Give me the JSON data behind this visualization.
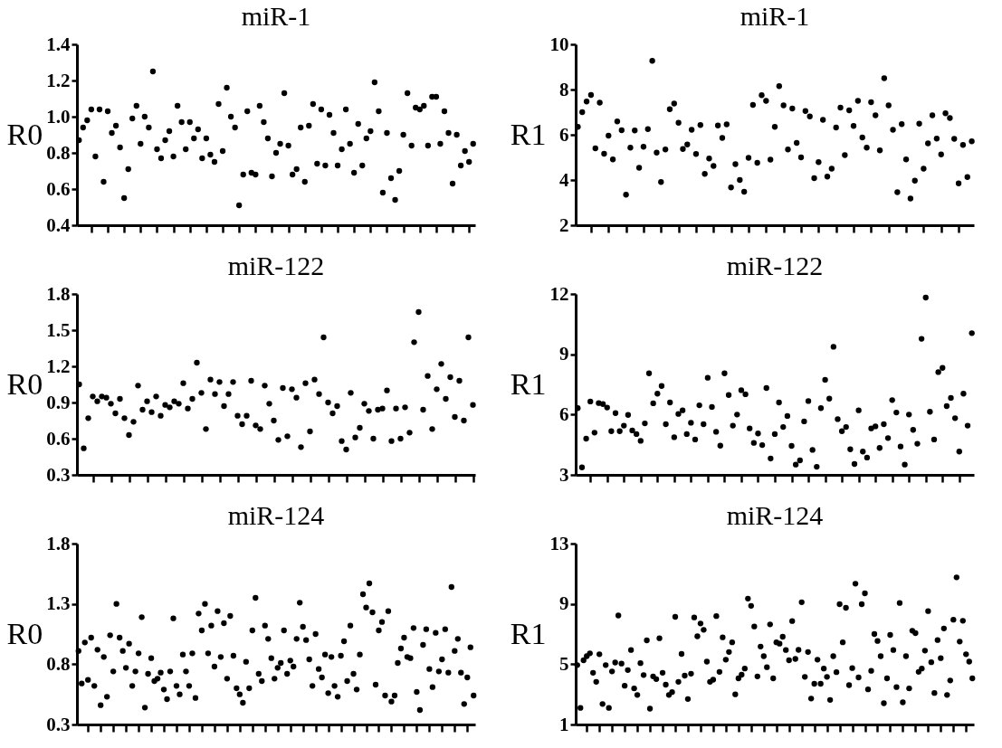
{
  "chart_data": [
    {
      "type": "scatter",
      "title": "miR-1",
      "ylabel": "R0",
      "color": "#000000",
      "marker": "circle",
      "tick_labels": "y",
      "ylim": [
        0.4,
        1.4
      ],
      "yticks": [
        0.4,
        0.6,
        0.8,
        {
          "value": 1,
          "label": "1.0"
        },
        1.2,
        1.4
      ],
      "categories": [
        null,
        null,
        null,
        null,
        null,
        null,
        null,
        null,
        null,
        null,
        null,
        null,
        null,
        null,
        null,
        null,
        null,
        null,
        null,
        null,
        null,
        null,
        null,
        null,
        null,
        null,
        null,
        null,
        null,
        null,
        null,
        null,
        null,
        null,
        null,
        null,
        null,
        null,
        null,
        null,
        null,
        null,
        null,
        null,
        null,
        null,
        null,
        null,
        null,
        null,
        null,
        null,
        null,
        null,
        null,
        null,
        null,
        null,
        null,
        null,
        null,
        null,
        null,
        null,
        null,
        null,
        null,
        null,
        null,
        null,
        null,
        null,
        null,
        null,
        null,
        null,
        null,
        null,
        null,
        null,
        null,
        null,
        null,
        null,
        null,
        null,
        null,
        null,
        null,
        null,
        null,
        null,
        null,
        null,
        null,
        null,
        null
      ],
      "values": [
        0.87,
        0.94,
        0.98,
        1.04,
        0.78,
        1.04,
        0.64,
        1.03,
        0.91,
        0.95,
        0.83,
        0.55,
        0.71,
        0.99,
        1.06,
        0.85,
        1.0,
        0.94,
        1.25,
        0.82,
        0.77,
        0.87,
        0.92,
        0.78,
        1.06,
        0.97,
        0.82,
        0.97,
        0.88,
        0.93,
        0.77,
        0.88,
        0.79,
        0.75,
        1.07,
        0.81,
        1.16,
        1.0,
        0.94,
        0.51,
        0.68,
        1.03,
        0.69,
        0.68,
        1.06,
        0.97,
        0.88,
        0.67,
        0.8,
        0.85,
        1.13,
        0.84,
        0.68,
        0.71,
        0.94,
        0.64,
        0.95,
        1.07,
        0.74,
        1.04,
        0.73,
        1.01,
        0.91,
        0.73,
        0.82,
        1.04,
        0.85,
        0.69,
        0.96,
        0.73,
        0.88,
        0.92,
        1.19,
        1.03,
        0.58,
        0.91,
        0.66,
        0.54,
        0.7,
        0.9,
        1.13,
        0.84,
        1.05,
        1.04,
        1.06,
        0.84,
        1.11,
        1.11,
        0.85,
        1.03,
        0.91,
        0.63,
        0.9,
        0.73,
        0.81,
        0.75,
        0.85
      ]
    },
    {
      "type": "scatter",
      "title": "miR-1",
      "ylabel": "R1",
      "color": "#000000",
      "marker": "circle",
      "tick_labels": "y",
      "ylim": [
        2,
        10
      ],
      "yticks": [
        2,
        4,
        6,
        8,
        10
      ],
      "categories": [
        null,
        null,
        null,
        null,
        null,
        null,
        null,
        null,
        null,
        null,
        null,
        null,
        null,
        null,
        null,
        null,
        null,
        null,
        null,
        null,
        null,
        null,
        null,
        null,
        null,
        null,
        null,
        null,
        null,
        null,
        null,
        null,
        null,
        null,
        null,
        null,
        null,
        null,
        null,
        null,
        null,
        null,
        null,
        null,
        null,
        null,
        null,
        null,
        null,
        null,
        null,
        null,
        null,
        null,
        null,
        null,
        null,
        null,
        null,
        null,
        null,
        null,
        null,
        null,
        null,
        null,
        null,
        null,
        null,
        null,
        null,
        null,
        null,
        null,
        null,
        null,
        null,
        null,
        null,
        null,
        null,
        null,
        null,
        null,
        null,
        null,
        null,
        null,
        null,
        null,
        null
      ],
      "values": [
        6.35,
        7.0,
        7.47,
        7.76,
        5.4,
        7.42,
        5.16,
        5.96,
        4.91,
        6.59,
        6.2,
        3.35,
        5.43,
        6.19,
        4.54,
        5.47,
        6.25,
        9.27,
        5.21,
        3.91,
        5.35,
        7.13,
        7.38,
        6.53,
        5.37,
        5.57,
        6.22,
        5.15,
        6.43,
        4.27,
        4.95,
        4.62,
        6.41,
        5.86,
        6.46,
        3.67,
        4.7,
        4.0,
        3.48,
        4.98,
        7.32,
        4.76,
        7.75,
        7.5,
        4.9,
        6.35,
        8.15,
        7.3,
        5.35,
        7.16,
        5.64,
        5.0,
        7.05,
        6.81,
        4.08,
        4.79,
        6.66,
        4.15,
        4.5,
        6.32,
        7.2,
        5.1,
        7.08,
        6.39,
        7.5,
        5.88,
        5.43,
        7.44,
        6.86,
        5.31,
        8.5,
        7.3,
        6.22,
        3.46,
        6.47,
        4.91,
        3.18,
        3.97,
        6.49,
        4.5,
        5.62,
        6.86,
        5.83,
        5.13,
        6.95,
        6.74,
        5.82,
        3.85,
        5.55,
        4.13,
        5.71
      ]
    },
    {
      "type": "scatter",
      "title": "miR-122",
      "ylabel": "R0",
      "color": "#000000",
      "marker": "circle",
      "tick_labels": "y",
      "ylim": [
        0.3,
        1.8
      ],
      "yticks": [
        0.3,
        0.6,
        0.9,
        1.2,
        1.5,
        1.8
      ],
      "categories": [
        null,
        null,
        null,
        null,
        null,
        null,
        null,
        null,
        null,
        null,
        null,
        null,
        null,
        null,
        null,
        null,
        null,
        null,
        null,
        null,
        null,
        null,
        null,
        null,
        null,
        null,
        null,
        null,
        null,
        null,
        null,
        null,
        null,
        null,
        null,
        null,
        null,
        null,
        null,
        null,
        null,
        null,
        null,
        null,
        null,
        null,
        null,
        null,
        null,
        null,
        null,
        null,
        null,
        null,
        null,
        null,
        null,
        null,
        null,
        null,
        null,
        null,
        null,
        null,
        null,
        null,
        null,
        null,
        null,
        null,
        null,
        null,
        null,
        null,
        null,
        null,
        null,
        null,
        null,
        null,
        null,
        null,
        null,
        null,
        null,
        null,
        null,
        null
      ],
      "values": [
        1.05,
        0.52,
        0.77,
        0.95,
        0.91,
        0.95,
        0.94,
        0.89,
        0.81,
        0.93,
        0.77,
        0.63,
        0.74,
        1.04,
        0.84,
        0.91,
        0.82,
        0.95,
        0.79,
        0.88,
        0.86,
        0.91,
        0.89,
        1.06,
        0.85,
        0.93,
        1.23,
        0.98,
        0.68,
        1.09,
        0.97,
        1.07,
        0.87,
        0.97,
        1.07,
        0.79,
        0.72,
        0.79,
        1.08,
        0.71,
        0.68,
        1.04,
        0.89,
        0.75,
        0.59,
        1.02,
        0.62,
        1.01,
        0.94,
        0.53,
        1.06,
        0.66,
        1.09,
        0.97,
        1.44,
        0.9,
        0.81,
        0.87,
        0.58,
        0.51,
        0.98,
        0.61,
        0.69,
        0.89,
        0.83,
        0.6,
        0.84,
        0.85,
        1.0,
        0.58,
        0.85,
        0.6,
        0.86,
        0.65,
        1.4,
        1.65,
        0.84,
        1.12,
        0.68,
        1.01,
        1.22,
        0.93,
        1.11,
        0.78,
        1.08,
        0.75,
        1.44,
        0.88
      ]
    },
    {
      "type": "scatter",
      "title": "miR-122",
      "ylabel": "R1",
      "color": "#000000",
      "marker": "circle",
      "tick_labels": "y",
      "ylim": [
        3,
        12
      ],
      "yticks": [
        3,
        6,
        9,
        12
      ],
      "categories": [
        null,
        null,
        null,
        null,
        null,
        null,
        null,
        null,
        null,
        null,
        null,
        null,
        null,
        null,
        null,
        null,
        null,
        null,
        null,
        null,
        null,
        null,
        null,
        null,
        null,
        null,
        null,
        null,
        null,
        null,
        null,
        null,
        null,
        null,
        null,
        null,
        null,
        null,
        null,
        null,
        null,
        null,
        null,
        null,
        null,
        null,
        null,
        null,
        null,
        null,
        null,
        null,
        null,
        null,
        null,
        null,
        null,
        null,
        null,
        null,
        null,
        null,
        null,
        null,
        null,
        null,
        null,
        null,
        null,
        null,
        null,
        null,
        null,
        null,
        null,
        null,
        null,
        null,
        null,
        null,
        null,
        null,
        null,
        null,
        null,
        null,
        null,
        null,
        null,
        null,
        null,
        null,
        null,
        null,
        null
      ],
      "values": [
        6.32,
        3.37,
        4.8,
        6.65,
        5.1,
        6.57,
        6.52,
        6.35,
        5.17,
        6.07,
        5.17,
        5.45,
        5.98,
        5.21,
        5.03,
        4.69,
        5.56,
        8.05,
        6.56,
        7.04,
        7.42,
        5.52,
        6.6,
        4.87,
        6.03,
        6.21,
        5.03,
        5.59,
        4.76,
        6.46,
        5.52,
        7.83,
        6.38,
        5.14,
        4.45,
        8.05,
        6.97,
        5.45,
        6.0,
        7.21,
        7.01,
        5.31,
        4.59,
        5.06,
        4.48,
        7.32,
        3.81,
        5.03,
        6.6,
        5.38,
        5.93,
        4.44,
        3.51,
        3.72,
        5.66,
        6.67,
        4.24,
        3.4,
        6.32,
        7.73,
        6.79,
        9.37,
        5.77,
        5.17,
        5.38,
        4.27,
        3.54,
        6.21,
        4.16,
        3.86,
        5.31,
        5.41,
        4.34,
        5.52,
        4.83,
        6.72,
        6.1,
        4.41,
        3.51,
        6.0,
        5.24,
        4.55,
        9.77,
        11.82,
        6.14,
        4.76,
        8.11,
        8.32,
        6.42,
        6.83,
        5.82,
        4.16,
        7.04,
        5.45,
        10.05
      ]
    },
    {
      "type": "scatter",
      "title": "miR-124",
      "ylabel": "R0",
      "color": "#000000",
      "marker": "circle",
      "tick_labels": "y",
      "ylim": [
        0.3,
        1.8
      ],
      "yticks": [
        0.3,
        0.8,
        1.3,
        1.8
      ],
      "categories": [
        null,
        null,
        null,
        null,
        null,
        null,
        null,
        null,
        null,
        null,
        null,
        null,
        null,
        null,
        null,
        null,
        null,
        null,
        null,
        null,
        null,
        null,
        null,
        null,
        null,
        null,
        null,
        null,
        null,
        null,
        null,
        null,
        null,
        null,
        null,
        null,
        null,
        null,
        null,
        null,
        null,
        null,
        null,
        null,
        null,
        null,
        null,
        null,
        null,
        null,
        null,
        null,
        null,
        null,
        null,
        null,
        null,
        null,
        null,
        null,
        null,
        null,
        null,
        null,
        null,
        null,
        null,
        null,
        null,
        null,
        null,
        null,
        null,
        null,
        null,
        null,
        null,
        null,
        null,
        null,
        null,
        null,
        null,
        null,
        null,
        null,
        null,
        null,
        null,
        null,
        null,
        null,
        null,
        null,
        null,
        null,
        null,
        null,
        null,
        null,
        null,
        null,
        null,
        null,
        null,
        null,
        null,
        null,
        null,
        null,
        null,
        null,
        null,
        null,
        null,
        null,
        null,
        null,
        null,
        null,
        null,
        null,
        null,
        null,
        null,
        null
      ],
      "values": [
        0.91,
        0.64,
        0.98,
        0.67,
        1.02,
        0.62,
        0.92,
        0.46,
        0.86,
        0.53,
        1.04,
        0.74,
        1.3,
        1.02,
        0.91,
        0.77,
        0.97,
        0.62,
        0.74,
        0.89,
        1.19,
        0.44,
        0.72,
        0.85,
        0.66,
        0.68,
        0.73,
        0.59,
        0.51,
        0.74,
        1.18,
        0.62,
        0.55,
        0.88,
        0.74,
        0.62,
        0.89,
        0.52,
        1.22,
        1.08,
        1.3,
        0.89,
        1.12,
        0.78,
        1.24,
        0.86,
        1.14,
        0.68,
        1.2,
        0.87,
        0.6,
        0.55,
        0.48,
        0.82,
        0.6,
        1.08,
        1.35,
        0.72,
        0.66,
        1.12,
        1.01,
        0.85,
        0.68,
        0.77,
        0.81,
        1.08,
        0.72,
        0.83,
        0.78,
        1.01,
        1.31,
        1.11,
        1.0,
        0.84,
        0.62,
        1.05,
        0.76,
        0.69,
        0.88,
        0.56,
        0.86,
        0.62,
        0.53,
        0.87,
        0.99,
        0.66,
        1.12,
        0.72,
        0.59,
        0.88,
        1.38,
        1.27,
        1.47,
        1.23,
        0.63,
        1.08,
        1.15,
        0.54,
        1.24,
        0.49,
        0.54,
        0.81,
        0.93,
        1.02,
        0.86,
        0.85,
        1.1,
        0.57,
        0.42,
        0.96,
        1.09,
        0.76,
        0.61,
        1.06,
        0.74,
        0.84,
        1.09,
        0.73,
        1.44,
        0.91,
        1.01,
        0.73,
        0.47,
        0.69,
        0.94,
        0.54
      ]
    },
    {
      "type": "scatter",
      "title": "miR-124",
      "ylabel": "R1",
      "color": "#000000",
      "marker": "circle",
      "tick_labels": "y",
      "ylim": [
        1,
        13
      ],
      "yticks": [
        1,
        5,
        9,
        13
      ],
      "categories": [
        null,
        null,
        null,
        null,
        null,
        null,
        null,
        null,
        null,
        null,
        null,
        null,
        null,
        null,
        null,
        null,
        null,
        null,
        null,
        null,
        null,
        null,
        null,
        null,
        null,
        null,
        null,
        null,
        null,
        null,
        null,
        null,
        null,
        null,
        null,
        null,
        null,
        null,
        null,
        null,
        null,
        null,
        null,
        null,
        null,
        null,
        null,
        null,
        null,
        null,
        null,
        null,
        null,
        null,
        null,
        null,
        null,
        null,
        null,
        null,
        null,
        null,
        null,
        null,
        null,
        null,
        null,
        null,
        null,
        null,
        null,
        null,
        null,
        null,
        null,
        null,
        null,
        null,
        null,
        null,
        null,
        null,
        null,
        null,
        null,
        null,
        null,
        null,
        null,
        null,
        null,
        null,
        null,
        null,
        null,
        null,
        null,
        null,
        null,
        null,
        null,
        null,
        null,
        null,
        null,
        null,
        null,
        null,
        null,
        null,
        null,
        null,
        null,
        null,
        null,
        null,
        null,
        null,
        null,
        null,
        null,
        null,
        null,
        null,
        null,
        null
      ],
      "values": [
        4.94,
        2.1,
        5.26,
        5.53,
        5.72,
        4.43,
        3.83,
        5.66,
        2.36,
        4.94,
        2.1,
        4.52,
        5.11,
        8.23,
        5.04,
        3.57,
        4.61,
        5.94,
        3.39,
        2.96,
        5.07,
        4.28,
        6.58,
        2.05,
        4.19,
        4.01,
        6.72,
        4.43,
        3.64,
        2.96,
        3.15,
        8.14,
        3.83,
        5.68,
        4.24,
        2.69,
        4.37,
        8.1,
        6.85,
        7.7,
        7.28,
        5.17,
        3.83,
        3.97,
        8.19,
        4.49,
        6.78,
        5.3,
        5.81,
        6.45,
        3.0,
        4.06,
        4.3,
        4.71,
        9.35,
        8.87,
        7.5,
        4.19,
        6.17,
        5.53,
        4.8,
        7.64,
        4.06,
        6.45,
        6.36,
        6.82,
        5.94,
        5.26,
        7.86,
        5.35,
        5.95,
        9.11,
        4.16,
        5.81,
        2.72,
        3.7,
        5.3,
        3.7,
        4.71,
        4.16,
        2.63,
        5.53,
        4.47,
        8.98,
        6.45,
        8.74,
        3.61,
        4.74,
        10.34,
        4.12,
        8.98,
        9.7,
        3.33,
        4.56,
        7.0,
        6.54,
        5.53,
        2.41,
        4.06,
        6.94,
        5.94,
        3.48,
        9.06,
        2.47,
        5.53,
        3.39,
        7.22,
        7.06,
        4.49,
        4.71,
        5.9,
        8.52,
        5.13,
        3.09,
        6.6,
        5.4,
        7.37,
        2.96,
        3.92,
        7.95,
        10.76,
        6.5,
        7.88,
        5.66,
        5.17,
        4.06
      ]
    }
  ]
}
